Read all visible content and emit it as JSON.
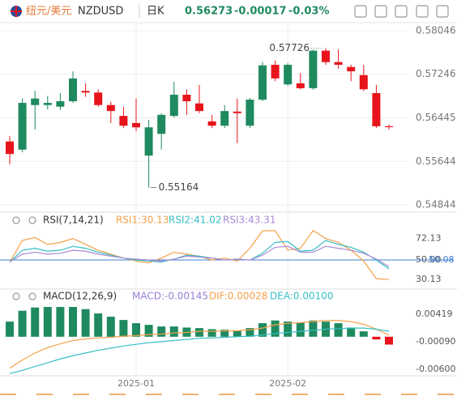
{
  "header": {
    "name": "纽元/美元",
    "symbol": "NZDUSD",
    "period": "日K",
    "price": "0.56273",
    "change": "-0.00017",
    "change_pct": "-0.03%"
  },
  "chart_data": [
    {
      "type": "candlestick",
      "up_color": "#1f8a5f",
      "down_color": "#e8141b",
      "categories": [
        null,
        null,
        null,
        null,
        null,
        null,
        null,
        null,
        null,
        null,
        "2025-01",
        null,
        null,
        null,
        null,
        null,
        null,
        null,
        null,
        null,
        null,
        null,
        "2025-02",
        null,
        null,
        null,
        null,
        null,
        null,
        null,
        null
      ],
      "open": [
        0.5601,
        0.5586,
        0.5668,
        0.5668,
        0.5665,
        0.5675,
        0.5694,
        0.5691,
        0.5668,
        0.5648,
        0.5635,
        0.5575,
        0.5615,
        0.5648,
        0.5687,
        0.5671,
        0.5638,
        0.563,
        0.5656,
        0.563,
        0.5678,
        0.5742,
        0.5706,
        0.5708,
        0.5699,
        0.5768,
        0.5747,
        0.5738,
        0.5723,
        0.569,
        0.5629
      ],
      "high": [
        0.5611,
        0.568,
        0.5694,
        0.5685,
        0.569,
        0.573,
        0.5708,
        0.5697,
        0.5674,
        0.5665,
        0.568,
        0.5641,
        0.5653,
        0.5711,
        0.5697,
        0.5705,
        0.565,
        0.5668,
        0.568,
        0.5681,
        0.5747,
        0.575,
        0.5745,
        0.5727,
        0.577,
        0.57726,
        0.577,
        0.5742,
        0.5742,
        0.5705,
        0.5632
      ],
      "low": [
        0.5559,
        0.5581,
        0.5623,
        0.566,
        0.5659,
        0.5672,
        0.5683,
        0.5665,
        0.5635,
        0.5626,
        0.562,
        0.55164,
        0.5586,
        0.5645,
        0.565,
        0.5653,
        0.5626,
        0.5626,
        0.5598,
        0.5626,
        0.5675,
        0.5712,
        0.5703,
        0.5697,
        0.5696,
        0.5742,
        0.5735,
        0.5712,
        0.5694,
        0.5626,
        0.5623
      ],
      "close": [
        0.5578,
        0.5672,
        0.568,
        0.5672,
        0.5675,
        0.5717,
        0.5691,
        0.5668,
        0.5657,
        0.563,
        0.5627,
        0.5627,
        0.565,
        0.5687,
        0.5675,
        0.5657,
        0.563,
        0.5657,
        0.5653,
        0.5678,
        0.5741,
        0.5717,
        0.5742,
        0.5699,
        0.5768,
        0.5747,
        0.5742,
        0.573,
        0.5697,
        0.5629,
        0.56273
      ],
      "ylim": [
        0.5471,
        0.58195
      ],
      "yticks": [
        0.54844,
        0.55644,
        0.56445,
        0.57246,
        0.58046
      ],
      "grid": true,
      "annotations": [
        "0.57726",
        "0.55164"
      ]
    },
    {
      "type": "line",
      "title": "RSI(7,14,21)",
      "ylim": [
        22,
        84
      ],
      "yticks": [
        72.13,
        {
          "value": 50,
          "label": "50.00"
        },
        30.13
      ],
      "reference_line": 50.08,
      "reference_color": "#3d7fd6",
      "series": [
        {
          "name": "RSI1:30.13",
          "color": "#f5a04a",
          "values": [
            48,
            70,
            73,
            66,
            68,
            72,
            66,
            60,
            56,
            52,
            49,
            47,
            52,
            58,
            56,
            54,
            50,
            52,
            49,
            62,
            80,
            80,
            60,
            62,
            80,
            72,
            68,
            60,
            49,
            31,
            30.13
          ]
        },
        {
          "name": "RSI2:41.02",
          "color": "#36bfc6",
          "values": [
            48,
            60,
            62,
            59,
            60,
            64,
            62,
            58,
            55,
            52,
            50,
            49,
            48,
            51,
            55,
            54,
            52,
            50,
            51,
            50,
            57,
            68,
            69,
            59,
            60,
            70,
            66,
            63,
            58,
            50,
            41.02
          ]
        },
        {
          "name": "RSI3:43.31",
          "color": "#a98ad6",
          "values": [
            48,
            56,
            58,
            56,
            57,
            60,
            59,
            56,
            54,
            52,
            51,
            50,
            49,
            51,
            54,
            53,
            52,
            50,
            51,
            50,
            55,
            63,
            64,
            58,
            58,
            64,
            62,
            60,
            57,
            51,
            43.31
          ]
        }
      ]
    },
    {
      "type": "macd",
      "title": "MACD(12,26,9)",
      "up_color": "#1f8a5f",
      "down_color": "#e8141b",
      "ylim": [
        -0.0081,
        0.0076
      ],
      "yticks": [
        0.00419,
        {
          "value": -0.0009,
          "label": "-0.00090"
        },
        {
          "value": -0.006,
          "label": "-0.00600"
        }
      ],
      "series": [
        {
          "name": "MACD:-0.00145",
          "color": "#9a7ed4",
          "values": [
            0.0028,
            0.0048,
            0.0054,
            0.0055,
            0.0055,
            0.0055,
            0.0051,
            0.0043,
            0.0037,
            0.0031,
            0.0025,
            0.0022,
            0.0019,
            0.0019,
            0.0017,
            0.0016,
            0.0014,
            0.0013,
            0.0011,
            0.0016,
            0.0025,
            0.003,
            0.0028,
            0.0026,
            0.003,
            0.0028,
            0.0025,
            0.0017,
            0.001,
            -0.0005,
            -0.00145
          ]
        },
        {
          "name": "DIF:0.00028",
          "color": "#f5a04a",
          "values": [
            -0.0058,
            -0.0043,
            -0.003,
            -0.002,
            -0.0013,
            -0.0007,
            -0.0004,
            -0.0002,
            -0.0001,
            0.0001,
            0.0002,
            0.0004,
            0.0005,
            0.0007,
            0.0008,
            0.001,
            0.001,
            0.0011,
            0.0011,
            0.0013,
            0.0016,
            0.0022,
            0.0025,
            0.0026,
            0.0028,
            0.003,
            0.003,
            0.0028,
            0.0023,
            0.0014,
            0.00028
          ]
        },
        {
          "name": "DEA:0.00100",
          "color": "#36bfc6",
          "values": [
            -0.0068,
            -0.0062,
            -0.0055,
            -0.0048,
            -0.0041,
            -0.0035,
            -0.003,
            -0.0025,
            -0.0021,
            -0.0017,
            -0.0014,
            -0.0011,
            -0.0009,
            -0.0007,
            -0.0005,
            -0.0003,
            -0.0002,
            -0.0001,
            0.0,
            0.0001,
            0.0003,
            0.0006,
            0.0008,
            0.001,
            0.0012,
            0.0014,
            0.0015,
            0.0016,
            0.0016,
            0.0014,
            0.001
          ]
        }
      ]
    }
  ]
}
